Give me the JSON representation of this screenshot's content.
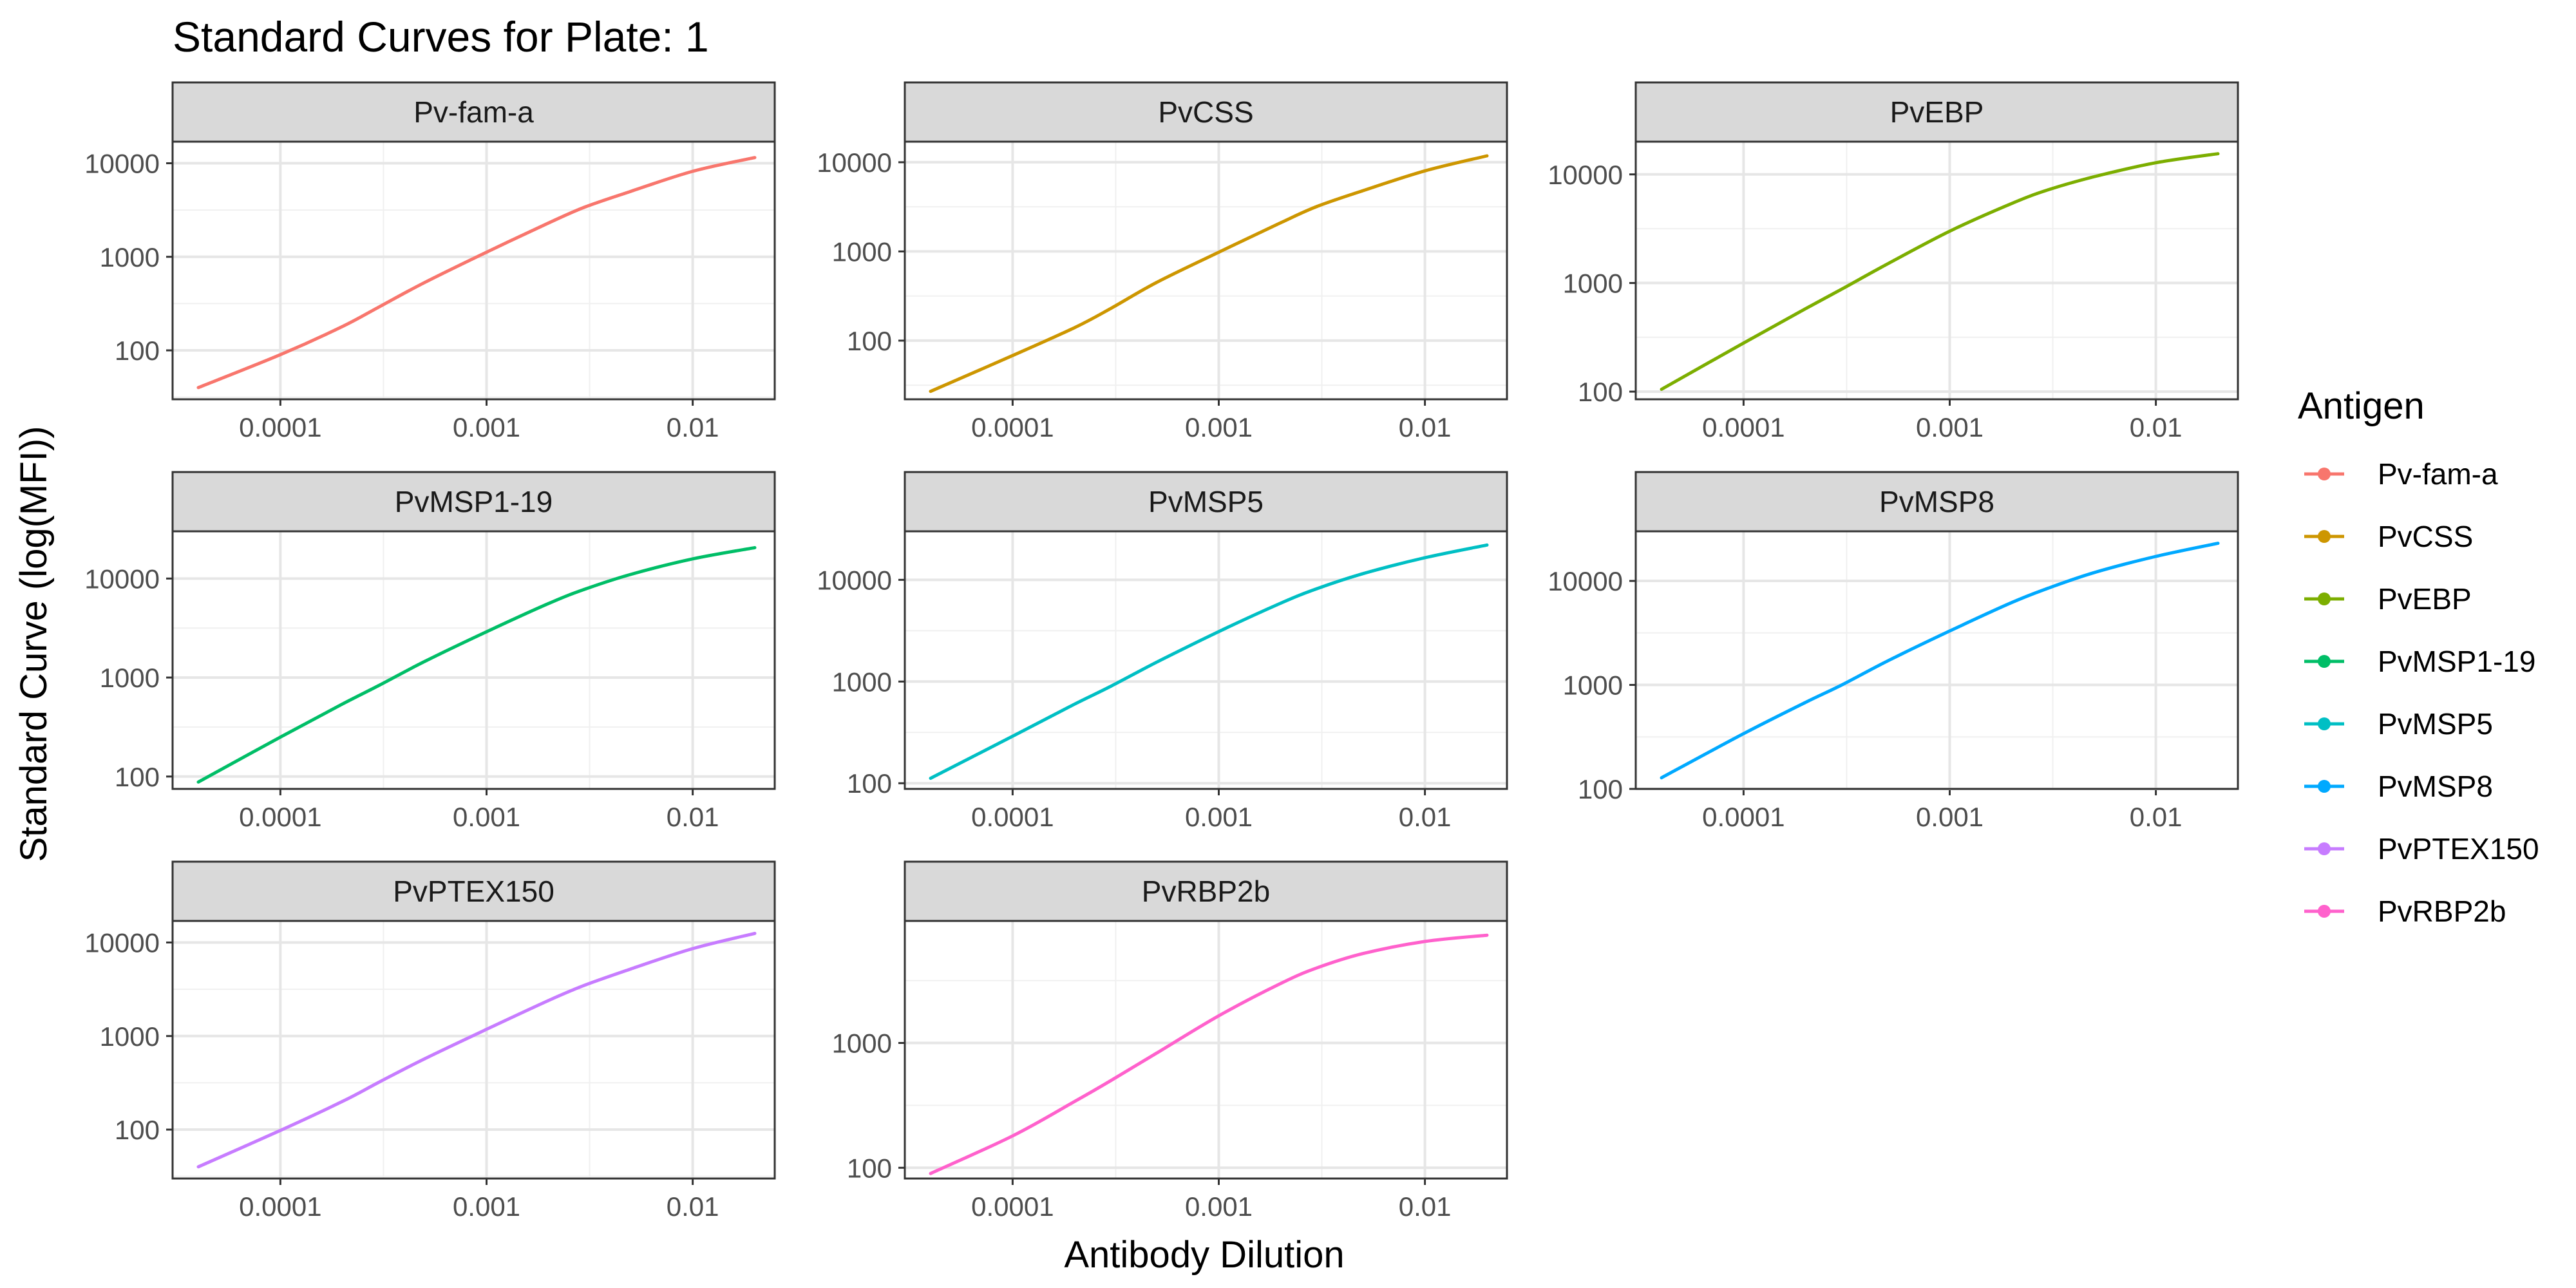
{
  "title": "Standard Curves for Plate: 1",
  "chart_data": {
    "type": "line",
    "title": "Standard Curves for Plate: 1",
    "xlabel": "Antibody Dilution",
    "ylabel": "Standard Curve (log(MFI))",
    "x_scale": "log10",
    "y_scale": "log10",
    "x_range": [
      3e-05,
      0.025
    ],
    "x_ticks": [
      0.0001,
      0.001,
      0.01
    ],
    "x_tick_labels": [
      "0.0001",
      "0.001",
      "0.01"
    ],
    "grid": true,
    "legend": {
      "title": "Antigen",
      "position": "right",
      "entries": [
        "Pv-fam-a",
        "PvCSS",
        "PvEBP",
        "PvMSP1-19",
        "PvMSP5",
        "PvMSP8",
        "PvPTEX150",
        "PvRBP2b"
      ]
    },
    "panels": [
      {
        "name": "Pv-fam-a",
        "color": "#F8766D",
        "ylim": [
          30,
          17000
        ],
        "y_ticks": [
          100,
          1000,
          10000
        ],
        "y_tick_labels": [
          "100",
          "1000",
          "10000"
        ],
        "x": [
          4e-05,
          0.0001,
          0.0002,
          0.0003,
          0.0005,
          0.001,
          0.002,
          0.003,
          0.005,
          0.01,
          0.02
        ],
        "y": [
          40,
          90,
          180,
          290,
          530,
          1120,
          2300,
          3400,
          5000,
          8200,
          11500
        ]
      },
      {
        "name": "PvCSS",
        "color": "#CD9600",
        "ylim": [
          22,
          17000
        ],
        "y_ticks": [
          100,
          1000,
          10000
        ],
        "y_tick_labels": [
          "100",
          "1000",
          "10000"
        ],
        "x": [
          4e-05,
          0.0001,
          0.0002,
          0.0003,
          0.0005,
          0.001,
          0.002,
          0.003,
          0.005,
          0.01,
          0.02
        ],
        "y": [
          27,
          68,
          140,
          230,
          450,
          980,
          2100,
          3200,
          4800,
          8000,
          11800
        ]
      },
      {
        "name": "PvEBP",
        "color": "#7CAE00",
        "ylim": [
          85,
          20000
        ],
        "y_ticks": [
          100,
          1000,
          10000
        ],
        "y_tick_labels": [
          "100",
          "1000",
          "10000"
        ],
        "x": [
          4e-05,
          0.0001,
          0.0002,
          0.0003,
          0.0005,
          0.001,
          0.002,
          0.003,
          0.005,
          0.01,
          0.02
        ],
        "y": [
          105,
          280,
          580,
          880,
          1500,
          3000,
          5400,
          7200,
          9500,
          12800,
          15500
        ]
      },
      {
        "name": "PvMSP1-19",
        "color": "#00BE67",
        "ylim": [
          75,
          30000
        ],
        "y_ticks": [
          100,
          1000,
          10000
        ],
        "y_tick_labels": [
          "100",
          "1000",
          "10000"
        ],
        "x": [
          4e-05,
          0.0001,
          0.0002,
          0.0003,
          0.0005,
          0.001,
          0.002,
          0.003,
          0.005,
          0.01,
          0.02
        ],
        "y": [
          88,
          250,
          540,
          830,
          1450,
          2900,
          5600,
          7800,
          11000,
          15800,
          20500
        ]
      },
      {
        "name": "PvMSP5",
        "color": "#00BFC4",
        "ylim": [
          88,
          30000
        ],
        "y_ticks": [
          100,
          1000,
          10000
        ],
        "y_tick_labels": [
          "100",
          "1000",
          "10000"
        ],
        "x": [
          4e-05,
          0.0001,
          0.0002,
          0.0003,
          0.0005,
          0.001,
          0.002,
          0.003,
          0.005,
          0.01,
          0.02
        ],
        "y": [
          112,
          290,
          600,
          900,
          1550,
          3100,
          5900,
          8200,
          11500,
          16500,
          22000
        ]
      },
      {
        "name": "PvMSP8",
        "color": "#00A9FF",
        "ylim": [
          100,
          30000
        ],
        "y_ticks": [
          100,
          1000,
          10000
        ],
        "y_tick_labels": [
          "100",
          "1000",
          "10000"
        ],
        "x": [
          4e-05,
          0.0001,
          0.0002,
          0.0003,
          0.0005,
          0.001,
          0.002,
          0.003,
          0.005,
          0.01,
          0.02
        ],
        "y": [
          128,
          340,
          680,
          1000,
          1700,
          3300,
          6200,
          8500,
          12000,
          17200,
          23000
        ]
      },
      {
        "name": "PvPTEX150",
        "color": "#C77CFF",
        "ylim": [
          30,
          17000
        ],
        "y_ticks": [
          100,
          1000,
          10000
        ],
        "y_tick_labels": [
          "100",
          "1000",
          "10000"
        ],
        "x": [
          4e-05,
          0.0001,
          0.0002,
          0.0003,
          0.0005,
          0.001,
          0.002,
          0.003,
          0.005,
          0.01,
          0.02
        ],
        "y": [
          40,
          98,
          200,
          320,
          570,
          1180,
          2400,
          3500,
          5200,
          8600,
          12500
        ]
      },
      {
        "name": "PvRBP2b",
        "color": "#FF61CC",
        "ylim": [
          82,
          9500
        ],
        "y_ticks": [
          100,
          1000
        ],
        "y_tick_labels": [
          "100",
          "1000"
        ],
        "x": [
          4e-05,
          0.0001,
          0.0002,
          0.0003,
          0.0005,
          0.001,
          0.002,
          0.003,
          0.005,
          0.01,
          0.02
        ],
        "y": [
          90,
          180,
          340,
          500,
          830,
          1650,
          3000,
          4000,
          5200,
          6500,
          7300
        ]
      }
    ]
  }
}
